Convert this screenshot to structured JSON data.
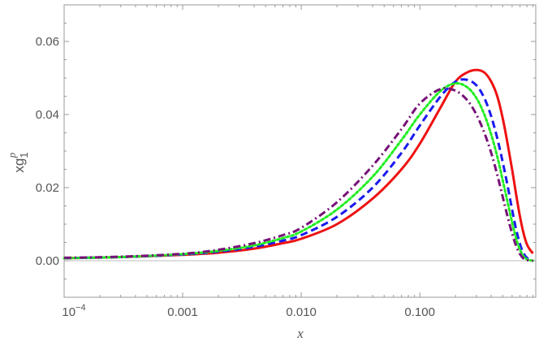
{
  "chart_data": {
    "type": "line",
    "xlabel": "x",
    "ylabel": {
      "base": "xg",
      "sub": "1",
      "sup": "p"
    },
    "xscale": "log",
    "xlim": [
      0.0001,
      0.95
    ],
    "ylim": [
      -0.01,
      0.07
    ],
    "xticks": [
      {
        "value": 0.0001,
        "label": "10",
        "sup": "−4"
      },
      {
        "value": 0.001,
        "label": "0.001"
      },
      {
        "value": 0.01,
        "label": "0.010"
      },
      {
        "value": 0.1,
        "label": "0.100"
      }
    ],
    "yticks": [
      {
        "value": 0.0,
        "label": "0.00"
      },
      {
        "value": 0.02,
        "label": "0.02"
      },
      {
        "value": 0.04,
        "label": "0.04"
      },
      {
        "value": 0.06,
        "label": "0.06"
      }
    ],
    "grid": false,
    "legend": "none",
    "series": [
      {
        "color": "#ee1111",
        "dash": "solid",
        "x": [
          0.0001,
          0.0003,
          0.001,
          0.002,
          0.004,
          0.007,
          0.01,
          0.02,
          0.04,
          0.07,
          0.1,
          0.15,
          0.2,
          0.25,
          0.3,
          0.35,
          0.4,
          0.45,
          0.5,
          0.55,
          0.6,
          0.65,
          0.7,
          0.75,
          0.8,
          0.85,
          0.9
        ],
        "y": [
          0.0007,
          0.001,
          0.0016,
          0.0022,
          0.0033,
          0.0048,
          0.006,
          0.01,
          0.017,
          0.025,
          0.032,
          0.042,
          0.049,
          0.0515,
          0.0522,
          0.0515,
          0.049,
          0.045,
          0.039,
          0.032,
          0.025,
          0.018,
          0.012,
          0.0075,
          0.0045,
          0.003,
          0.002
        ]
      },
      {
        "color": "#1a1aee",
        "dash": "dashed",
        "x": [
          0.0001,
          0.0003,
          0.001,
          0.002,
          0.004,
          0.007,
          0.01,
          0.02,
          0.04,
          0.07,
          0.1,
          0.15,
          0.2,
          0.25,
          0.3,
          0.35,
          0.4,
          0.45,
          0.5,
          0.55,
          0.6,
          0.65,
          0.7,
          0.75,
          0.8,
          0.85,
          0.9
        ],
        "y": [
          0.0007,
          0.001,
          0.0017,
          0.0025,
          0.0038,
          0.0055,
          0.007,
          0.012,
          0.02,
          0.0295,
          0.037,
          0.045,
          0.049,
          0.0495,
          0.048,
          0.0445,
          0.0395,
          0.0335,
          0.027,
          0.0205,
          0.014,
          0.0085,
          0.0045,
          0.002,
          0.0008,
          0.0002,
          0.0
        ]
      },
      {
        "color": "#22ee22",
        "dash": "dotted",
        "x": [
          0.0001,
          0.0003,
          0.001,
          0.002,
          0.004,
          0.007,
          0.01,
          0.02,
          0.04,
          0.07,
          0.1,
          0.15,
          0.2,
          0.25,
          0.3,
          0.35,
          0.4,
          0.45,
          0.5,
          0.55,
          0.6,
          0.65,
          0.7,
          0.75,
          0.8,
          0.85,
          0.9
        ],
        "y": [
          0.0007,
          0.001,
          0.0018,
          0.0027,
          0.0042,
          0.0062,
          0.008,
          0.014,
          0.023,
          0.033,
          0.04,
          0.0465,
          0.0485,
          0.0475,
          0.0445,
          0.04,
          0.0345,
          0.0285,
          0.022,
          0.016,
          0.0105,
          0.006,
          0.003,
          0.0012,
          0.0004,
          0.0001,
          0.0
        ]
      },
      {
        "color": "#771177",
        "dash": "dashdot",
        "x": [
          0.0001,
          0.0003,
          0.001,
          0.002,
          0.004,
          0.007,
          0.01,
          0.02,
          0.04,
          0.07,
          0.1,
          0.15,
          0.2,
          0.25,
          0.3,
          0.35,
          0.4,
          0.45,
          0.5,
          0.55,
          0.6,
          0.65,
          0.7,
          0.75,
          0.8,
          0.85,
          0.9
        ],
        "y": [
          0.0008,
          0.0011,
          0.0019,
          0.003,
          0.0048,
          0.007,
          0.009,
          0.016,
          0.026,
          0.036,
          0.043,
          0.047,
          0.0465,
          0.044,
          0.04,
          0.035,
          0.0295,
          0.0235,
          0.0175,
          0.012,
          0.0075,
          0.004,
          0.0018,
          0.0006,
          0.0002,
          0.0,
          0.0
        ]
      }
    ]
  }
}
